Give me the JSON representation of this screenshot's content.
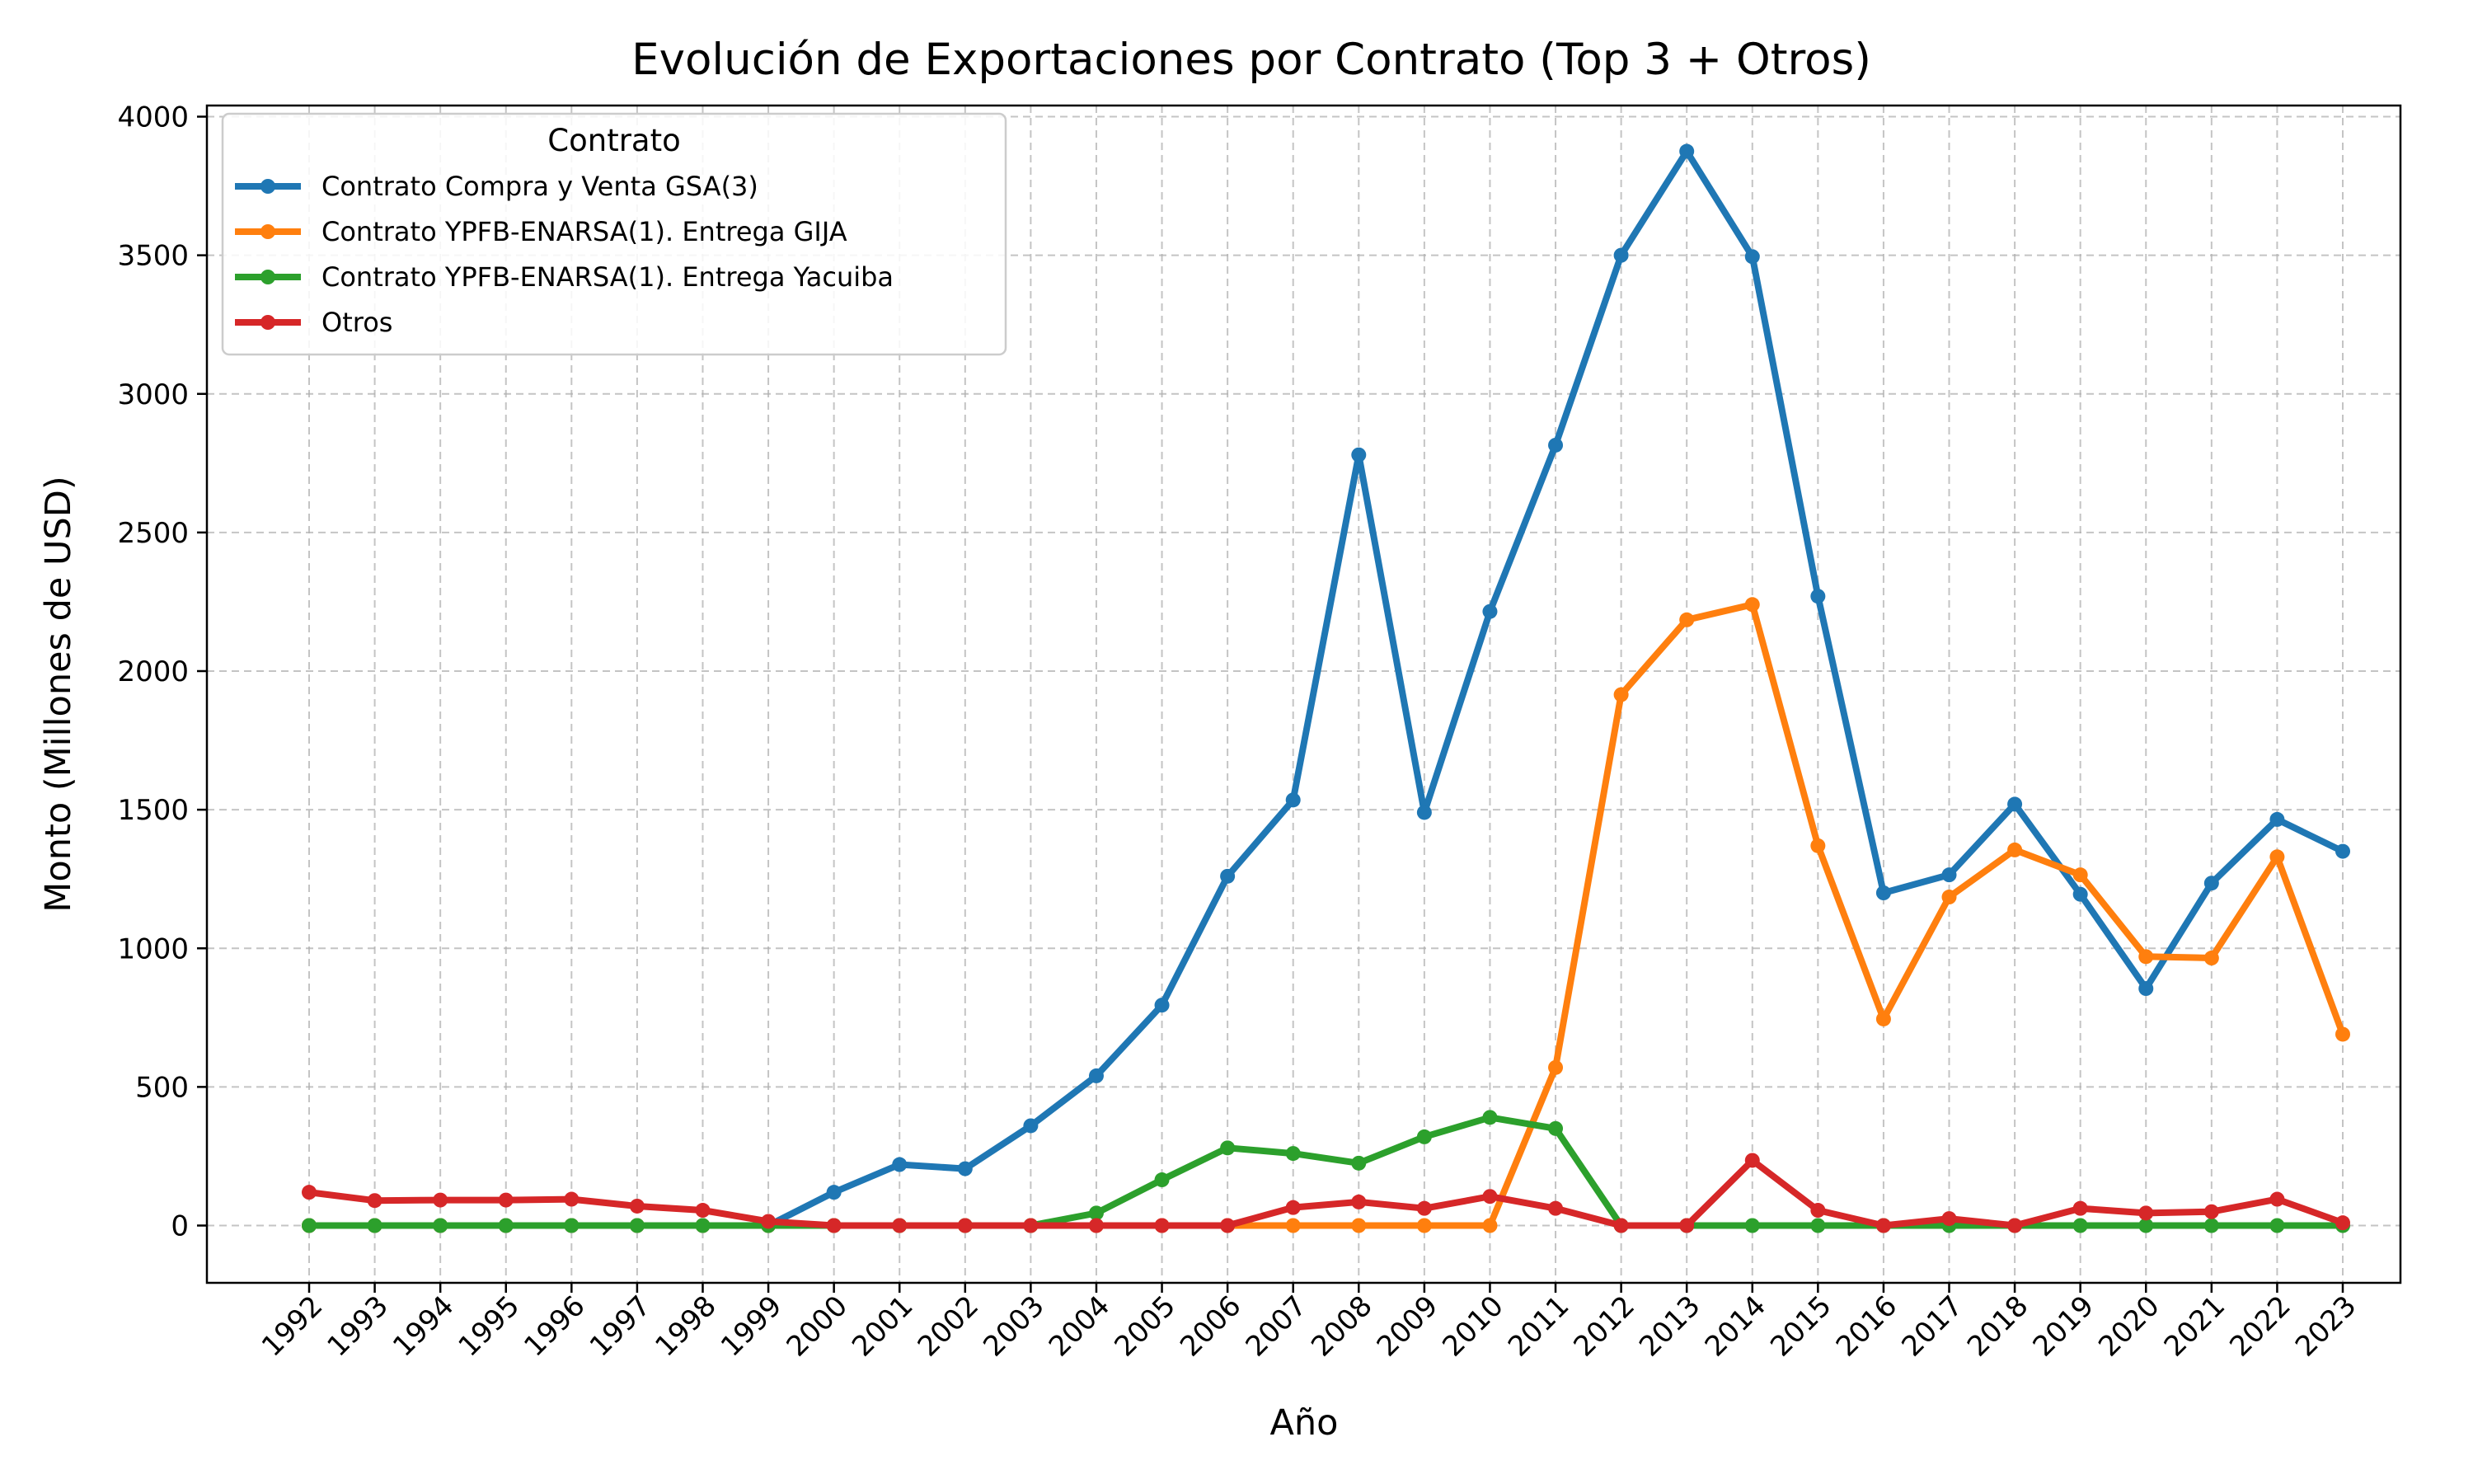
{
  "chart_data": {
    "type": "line",
    "title": "Evolución de Exportaciones por Contrato (Top 3 + Otros)",
    "xlabel": "Año",
    "ylabel": "Monto (Millones de USD)",
    "ylim": [
      -200,
      4000
    ],
    "yticks": [
      0,
      500,
      1000,
      1500,
      2000,
      2500,
      3000,
      3500,
      4000
    ],
    "grid": true,
    "legend": {
      "title": "Contrato",
      "position": "top-left"
    },
    "categories": [
      "1992",
      "1993",
      "1994",
      "1995",
      "1996",
      "1997",
      "1998",
      "1999",
      "2000",
      "2001",
      "2002",
      "2003",
      "2004",
      "2005",
      "2006",
      "2007",
      "2008",
      "2009",
      "2010",
      "2011",
      "2012",
      "2013",
      "2014",
      "2015",
      "2016",
      "2017",
      "2018",
      "2019",
      "2020",
      "2021",
      "2022",
      "2023"
    ],
    "series": [
      {
        "name": "Contrato Compra y Venta GSA(3)",
        "color": "#1f77b4",
        "values": [
          0,
          0,
          0,
          0,
          0,
          0,
          0,
          0,
          120,
          220,
          205,
          360,
          540,
          795,
          1260,
          1535,
          2780,
          1490,
          2215,
          2815,
          3500,
          3875,
          3495,
          2270,
          1200,
          1265,
          1520,
          1195,
          855,
          1235,
          1465,
          1350
        ]
      },
      {
        "name": "Contrato YPFB-ENARSA(1). Entrega GIJA",
        "color": "#ff7f0e",
        "values": [
          0,
          0,
          0,
          0,
          0,
          0,
          0,
          0,
          0,
          0,
          0,
          0,
          0,
          0,
          0,
          0,
          0,
          0,
          0,
          570,
          1915,
          2185,
          2240,
          1370,
          745,
          1185,
          1355,
          1265,
          970,
          965,
          1330,
          690
        ]
      },
      {
        "name": "Contrato YPFB-ENARSA(1). Entrega Yacuiba",
        "color": "#2ca02c",
        "values": [
          0,
          0,
          0,
          0,
          0,
          0,
          0,
          0,
          0,
          0,
          0,
          0,
          45,
          165,
          280,
          260,
          225,
          320,
          390,
          350,
          0,
          0,
          0,
          0,
          0,
          0,
          0,
          0,
          0,
          0,
          0,
          0
        ]
      },
      {
        "name": "Otros",
        "color": "#d62728",
        "values": [
          120,
          90,
          92,
          92,
          95,
          70,
          55,
          15,
          0,
          0,
          0,
          0,
          0,
          0,
          0,
          65,
          85,
          62,
          105,
          62,
          0,
          0,
          235,
          55,
          0,
          25,
          0,
          62,
          45,
          50,
          95,
          10
        ]
      }
    ]
  }
}
